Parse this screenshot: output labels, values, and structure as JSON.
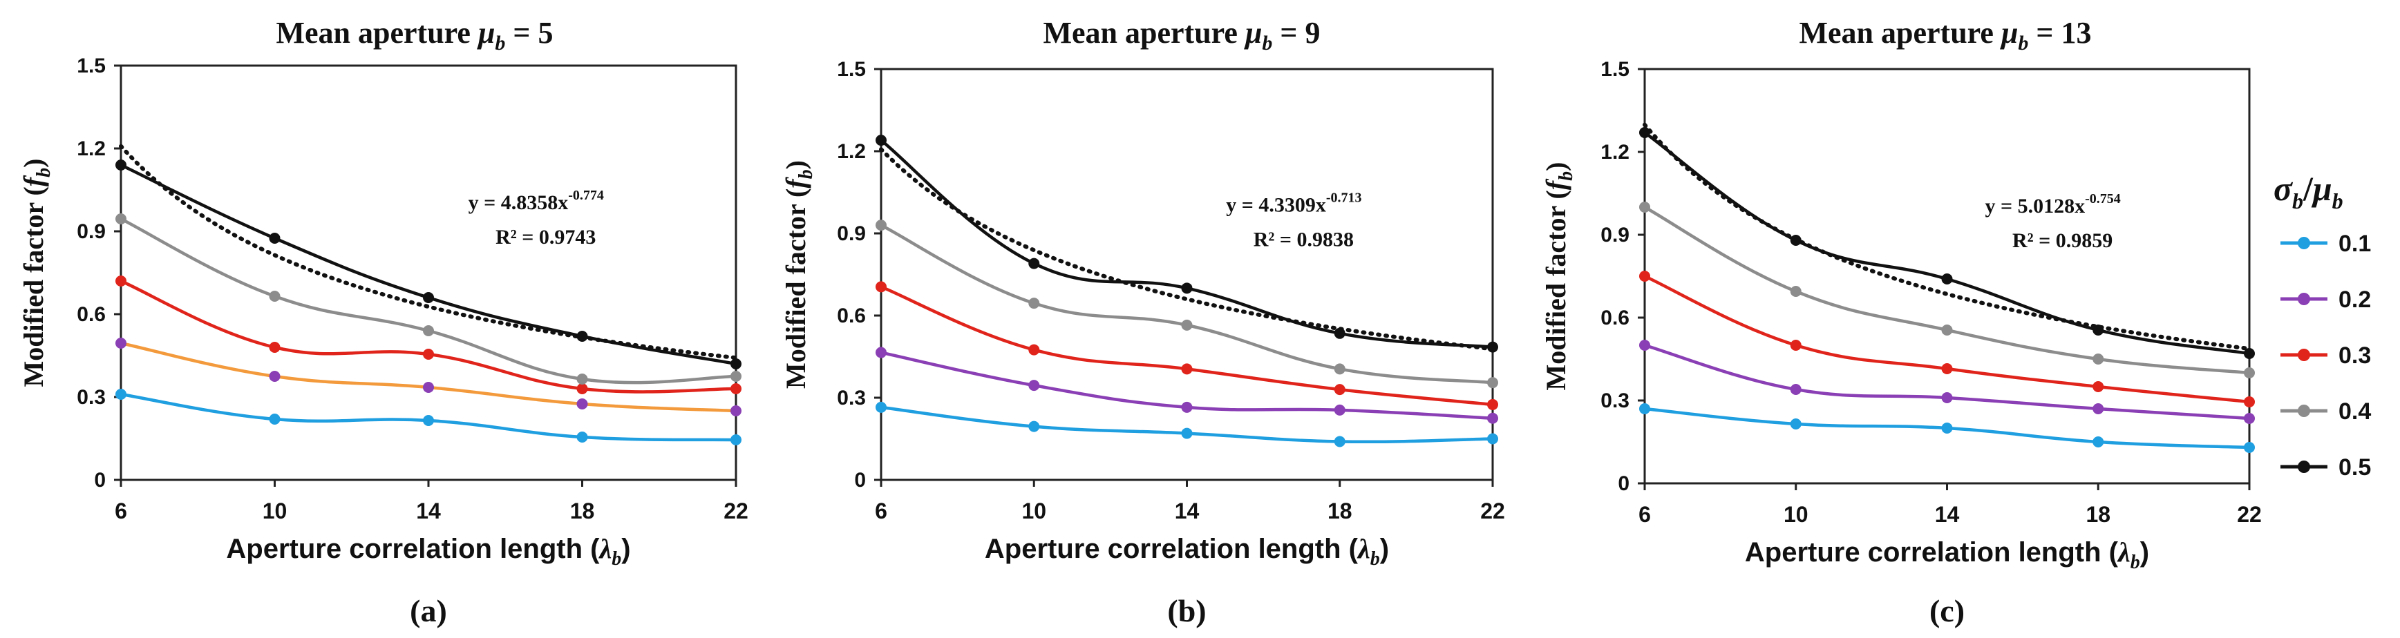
{
  "chart_data": [
    {
      "type": "line",
      "title_prefix": "Mean aperture ",
      "title_symbol": "μ",
      "title_sub": "b",
      "title_value": " = 5",
      "xlabel": "Aperture correlation length (",
      "xlabel_symbol": "λ",
      "xlabel_sub": "b",
      "xlabel_close": ")",
      "ylabel": "Modified factor (",
      "ylabel_symbol": "f",
      "ylabel_sub": "b",
      "ylabel_close": ")",
      "panel_label": "(a)",
      "x": [
        6,
        10,
        14,
        18,
        22
      ],
      "x_tick_labels": [
        "6",
        "10",
        "14",
        "18",
        "22"
      ],
      "ylim": [
        0,
        1.5
      ],
      "y_ticks": [
        0,
        0.3,
        0.6,
        0.9,
        1.2,
        1.5
      ],
      "y_tick_labels": [
        "0",
        "0.3",
        "0.6",
        "0.9",
        "1.2",
        "1.5"
      ],
      "series": [
        {
          "name": "0.1",
          "values": [
            0.31,
            0.22,
            0.215,
            0.155,
            0.145
          ]
        },
        {
          "name": "0.2",
          "values": [
            0.495,
            0.375,
            0.335,
            0.275,
            0.25
          ]
        },
        {
          "name": "0.3",
          "values": [
            0.72,
            0.48,
            0.455,
            0.33,
            0.33
          ]
        },
        {
          "name": "0.4",
          "values": [
            0.945,
            0.665,
            0.54,
            0.365,
            0.375
          ]
        },
        {
          "name": "0.5",
          "values": [
            1.14,
            0.875,
            0.66,
            0.52,
            0.42
          ]
        }
      ],
      "fit": {
        "a": 4.8358,
        "b": -0.774
      },
      "fit_equation": "y = 4.8358x",
      "fit_exponent": "-0.774",
      "r_squared": "R² = 0.9743"
    },
    {
      "type": "line",
      "title_prefix": "Mean aperture ",
      "title_symbol": "μ",
      "title_sub": "b",
      "title_value": " = 9",
      "xlabel": "Aperture correlation length (",
      "xlabel_symbol": "λ",
      "xlabel_sub": "b",
      "xlabel_close": ")",
      "ylabel": "Modified factor (",
      "ylabel_symbol": "f",
      "ylabel_sub": "b",
      "ylabel_close": ")",
      "panel_label": "(b)",
      "x": [
        6,
        10,
        14,
        18,
        22
      ],
      "x_tick_labels": [
        "6",
        "10",
        "14",
        "18",
        "22"
      ],
      "ylim": [
        0,
        1.5
      ],
      "y_ticks": [
        0,
        0.3,
        0.6,
        0.9,
        1.2,
        1.5
      ],
      "y_tick_labels": [
        "0",
        "0.3",
        "0.6",
        "0.9",
        "1.2",
        "1.5"
      ],
      "series": [
        {
          "name": "0.1",
          "values": [
            0.265,
            0.195,
            0.17,
            0.14,
            0.15
          ]
        },
        {
          "name": "0.2",
          "values": [
            0.465,
            0.345,
            0.265,
            0.255,
            0.225
          ]
        },
        {
          "name": "0.3",
          "values": [
            0.705,
            0.475,
            0.405,
            0.33,
            0.275
          ]
        },
        {
          "name": "0.4",
          "values": [
            0.93,
            0.645,
            0.565,
            0.405,
            0.355
          ]
        },
        {
          "name": "0.5",
          "values": [
            1.24,
            0.79,
            0.7,
            0.535,
            0.485
          ]
        }
      ],
      "fit": {
        "a": 4.3309,
        "b": -0.713
      },
      "fit_equation": "y = 4.3309x",
      "fit_exponent": "-0.713",
      "r_squared": "R² = 0.9838"
    },
    {
      "type": "line",
      "title_prefix": "Mean aperture ",
      "title_symbol": "μ",
      "title_sub": "b",
      "title_value": " = 13",
      "xlabel": "Aperture correlation length (",
      "xlabel_symbol": "λ",
      "xlabel_sub": "b",
      "xlabel_close": ")",
      "ylabel": "Modified factor (",
      "ylabel_symbol": "f",
      "ylabel_sub": "b",
      "ylabel_close": ")",
      "panel_label": "(c)",
      "x": [
        6,
        10,
        14,
        18,
        22
      ],
      "x_tick_labels": [
        "6",
        "10",
        "14",
        "18",
        "22"
      ],
      "ylim": [
        0,
        1.5
      ],
      "y_ticks": [
        0,
        0.3,
        0.6,
        0.9,
        1.2,
        1.5
      ],
      "y_tick_labels": [
        "0",
        "0.3",
        "0.6",
        "0.9",
        "1.2",
        "1.5"
      ],
      "series": [
        {
          "name": "0.1",
          "values": [
            0.27,
            0.215,
            0.2,
            0.15,
            0.13
          ]
        },
        {
          "name": "0.2",
          "values": [
            0.5,
            0.34,
            0.31,
            0.27,
            0.235
          ]
        },
        {
          "name": "0.3",
          "values": [
            0.75,
            0.5,
            0.415,
            0.35,
            0.295
          ]
        },
        {
          "name": "0.4",
          "values": [
            1.0,
            0.695,
            0.555,
            0.45,
            0.4
          ]
        },
        {
          "name": "0.5",
          "values": [
            1.27,
            0.88,
            0.74,
            0.555,
            0.47
          ]
        }
      ],
      "fit": {
        "a": 5.0128,
        "b": -0.754
      },
      "fit_equation": "y = 5.0128x",
      "fit_exponent": "-0.754",
      "r_squared": "R² = 0.9859"
    }
  ],
  "legend": {
    "title_symbol_1": "σ",
    "title_sub_1": "b",
    "title_slash": "/",
    "title_symbol_2": "μ",
    "title_sub_2": "b",
    "entries": [
      {
        "label": "0.1",
        "color": "#1f9ee0"
      },
      {
        "label": "0.2",
        "color": "#8a3fb4"
      },
      {
        "label": "0.3",
        "color": "#e0241b"
      },
      {
        "label": "0.4",
        "color": "#8c8c8c"
      },
      {
        "label": "0.5",
        "color": "#111111"
      }
    ]
  },
  "colors": {
    "series": [
      "#1f9ee0",
      "#8a3fb4",
      "#e0241b",
      "#8c8c8c",
      "#111111"
    ],
    "panel_a_series2_line": "#f39a3c",
    "fit_line": "#111111",
    "axis": "#222222"
  }
}
